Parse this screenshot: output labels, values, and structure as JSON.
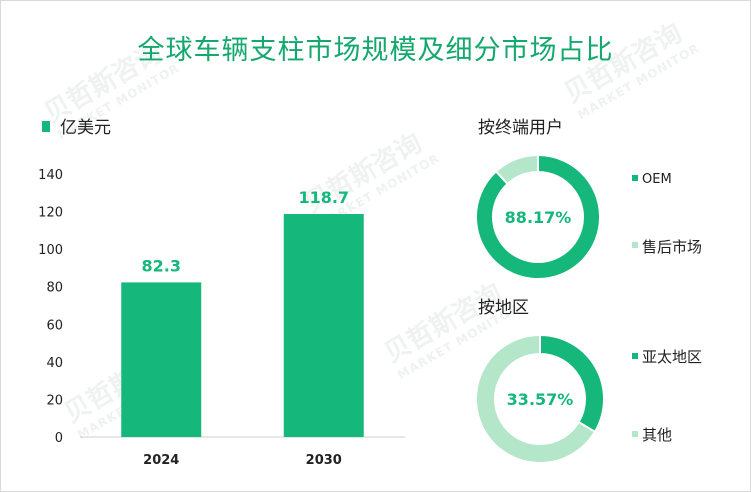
{
  "title": "全球车辆支柱市场规模及细分市场占比",
  "watermark": {
    "brand": "贝哲斯咨询",
    "sub": "MARKET MONITOR"
  },
  "colors": {
    "primary": "#15b77a",
    "light": "#b4e6c9",
    "title": "#15a86e"
  },
  "chart_data": [
    {
      "type": "bar",
      "legend": "亿美元",
      "categories": [
        "2024",
        "2030"
      ],
      "values": [
        82.3,
        118.7
      ],
      "value_labels": [
        "82.3",
        "118.7"
      ],
      "ylim": [
        0,
        140
      ],
      "yticks": [
        "0",
        "20",
        "40",
        "60",
        "80",
        "100",
        "120",
        "140"
      ]
    },
    {
      "type": "pie",
      "title": "按终端用户",
      "center_label": "88.17%",
      "slices": [
        {
          "name": "OEM",
          "value": 88.17
        },
        {
          "name": "售后市场",
          "value": 11.83
        }
      ]
    },
    {
      "type": "pie",
      "title": "按地区",
      "center_label": "33.57%",
      "slices": [
        {
          "name": "亚太地区",
          "value": 33.57
        },
        {
          "name": "其他",
          "value": 66.43
        }
      ]
    }
  ]
}
